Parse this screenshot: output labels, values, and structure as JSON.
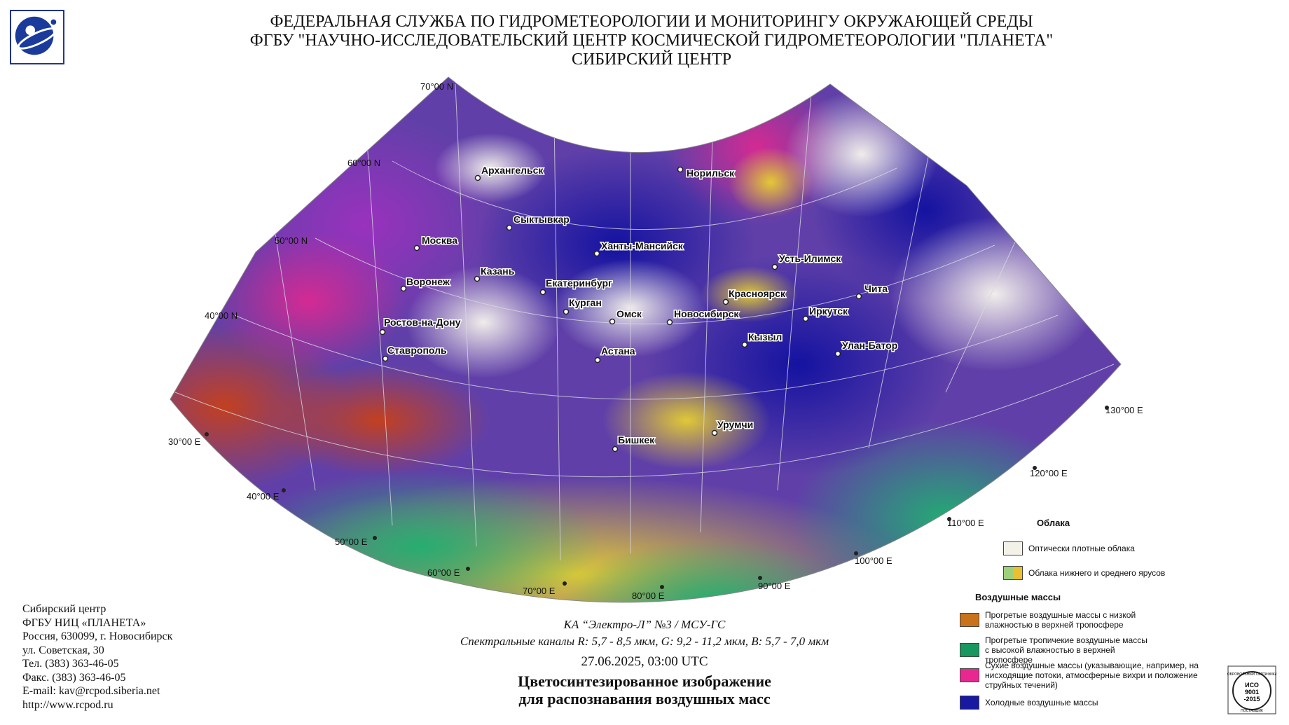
{
  "header": {
    "line1": "ФЕДЕРАЛЬНАЯ СЛУЖБА ПО ГИДРОМЕТЕОРОЛОГИИ И МОНИТОРИНГУ ОКРУЖАЮЩЕЙ СРЕДЫ",
    "line2": "ФГБУ \"НАУЧНО-ИССЛЕДОВАТЕЛЬСКИЙ ЦЕНТР КОСМИЧЕСКОЙ ГИДРОМЕТЕОРОЛОГИИ \"ПЛАНЕТА\"",
    "line3": "СИБИРСКИЙ ЦЕНТР"
  },
  "map": {
    "latitude_labels": [
      "70°00 N",
      "60°00 N",
      "50°00 N",
      "40°00 N"
    ],
    "longitude_labels": [
      "30°00 E",
      "40°00 E",
      "50°00 E",
      "60°00 E",
      "70°00 E",
      "80°00 E",
      "90°00 E",
      "100°00 E",
      "110°00 E",
      "120°00 E",
      "130°00 E"
    ],
    "cities": [
      "Архангельск",
      "Норильск",
      "Сыктывкар",
      "Москва",
      "Ханты-Мансийск",
      "Усть-Илимск",
      "Казань",
      "Воронеж",
      "Екатеринбург",
      "Красноярск",
      "Чита",
      "Курган",
      "Омск",
      "Новосибирск",
      "Иркутск",
      "Ростов-на-Дону",
      "Кызыл",
      "Ставрополь",
      "Астана",
      "Улан-Батор",
      "Урумчи",
      "Бишкек"
    ],
    "colors": {
      "warm_dry": "#c8621c",
      "tropical_moist": "#20a464",
      "dry_descending": "#e8248c",
      "cold": "#18189c",
      "cloud_dense": "#f4f2e8",
      "cloud_low": "#e0d040",
      "purple": "#9040b0"
    }
  },
  "info": {
    "lines": [
      "Сибирский центр",
      "ФГБУ НИЦ «ПЛАНЕТА»",
      "Россия, 630099, г. Новосибирск",
      "ул. Советская, 30",
      "Тел. (383) 363-46-05",
      "Факс. (383) 363-46-05",
      "E-mail: kav@rcpod.siberia.net",
      "http://www.rcpod.ru"
    ]
  },
  "caption": {
    "satellite": "КА “Электро-Л” №3 / МСУ-ГС",
    "channels": "Спектральные каналы R: 5,7 - 8,5 мкм, G: 9,2 - 11,2 мкм, B: 5,7 - 7,0 мкм",
    "datetime": "27.06.2025, 03:00 UTC",
    "title1": "Цветосинтезированное изображение",
    "title2": "для распознавания воздушных масс"
  },
  "legend": {
    "clouds_title": "Облака",
    "clouds": [
      {
        "text": "Оптически плотные облака",
        "color": "#f4f2e8"
      },
      {
        "text": "Облака нижнего и среднего ярусов",
        "color": "#9ed07a",
        "color2": "#e8c030"
      }
    ],
    "airmass_title": "Воздушные массы",
    "airmasses": [
      {
        "text": "Прогретые воздушные массы с низкой влажностью в верхней тропосфере",
        "color": "#c8721c"
      },
      {
        "text": "Прогретые тропичекие воздушные массы с высокой влажностью в верхней тропосфере",
        "color": "#189860"
      },
      {
        "text": "Сухие воздушные массы (указывающие, например, на нисходящие потоки, атмосферные вихри и положение струйных течений)",
        "color": "#e82890"
      },
      {
        "text": "Холодные воздушные массы",
        "color": "#1818a0"
      }
    ]
  },
  "iso": {
    "line1": "ДОБРОВОЛЬНЫЙ СЕРТИФИКАТ",
    "line2": "ИСО",
    "line3": "9001",
    "line4": "-2015",
    "line5": "ПОСТАВЩИК"
  }
}
